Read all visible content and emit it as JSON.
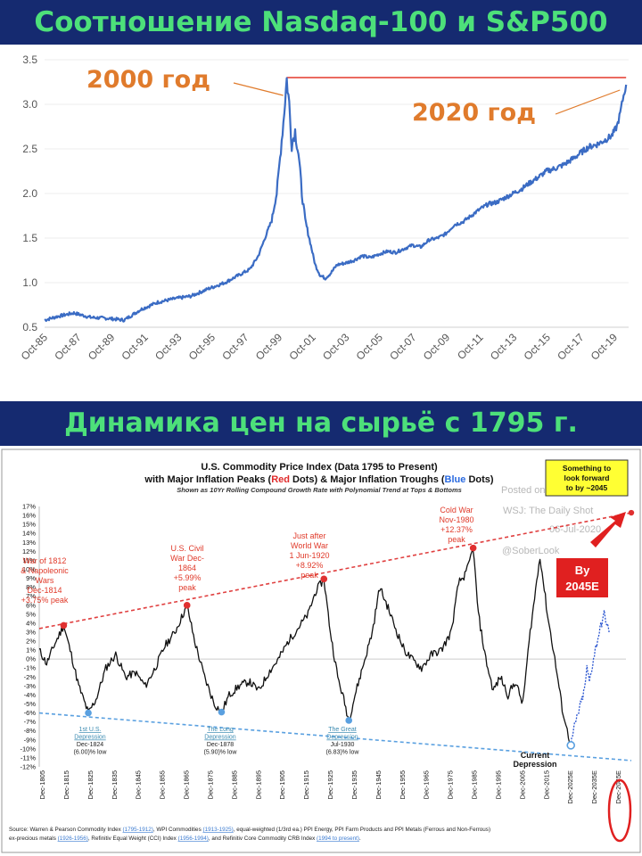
{
  "banner_top": "Соотношение Nasdaq-100 и S&P500",
  "banner_bottom": "Динамика цен на сырьё с 1795 г.",
  "chart_data": [
    {
      "type": "line",
      "y_ticks": [
        "3.5",
        "3.0",
        "2.5",
        "2.0",
        "1.5",
        "1.0",
        "0.5"
      ],
      "x_ticks": [
        "Oct-85",
        "Oct-87",
        "Oct-89",
        "Oct-91",
        "Oct-93",
        "Oct-95",
        "Oct-97",
        "Oct-99",
        "Oct-01",
        "Oct-03",
        "Oct-05",
        "Oct-07",
        "Oct-09",
        "Oct-11",
        "Oct-13",
        "Oct-15",
        "Oct-17",
        "Oct-19"
      ],
      "ylim": [
        0.5,
        3.5
      ],
      "xlim": [
        1985.75,
        2020.6
      ],
      "series_color": "#3b6cc4",
      "reference_line": 3.3,
      "reference_color": "#e8544a",
      "annotations": [
        {
          "text": "2000 год",
          "x": 2000.2,
          "y": 3.3
        },
        {
          "text": "2020 год",
          "x": 2020.4,
          "y": 3.22
        }
      ],
      "x": [
        1985.75,
        1986.5,
        1987.5,
        1988.5,
        1989.5,
        1990.5,
        1991.5,
        1992.5,
        1993.5,
        1994.5,
        1995.5,
        1996.5,
        1997.5,
        1998.0,
        1998.5,
        1999.0,
        1999.3,
        1999.6,
        1999.8,
        2000.0,
        2000.2,
        2000.35,
        2000.5,
        2000.7,
        2000.9,
        2001.1,
        2001.3,
        2001.6,
        2001.9,
        2002.2,
        2002.5,
        2002.8,
        2003.2,
        2003.7,
        2004.2,
        2004.7,
        2005.2,
        2005.7,
        2006.2,
        2006.7,
        2007.2,
        2007.7,
        2008.2,
        2008.7,
        2009.2,
        2009.7,
        2010.2,
        2010.7,
        2011.2,
        2011.7,
        2012.2,
        2012.7,
        2013.2,
        2013.7,
        2014.2,
        2014.7,
        2015.2,
        2015.7,
        2016.2,
        2016.7,
        2017.2,
        2017.7,
        2018.2,
        2018.7,
        2019.2,
        2019.6,
        2019.9,
        2020.1,
        2020.3,
        2020.45
      ],
      "y": [
        0.58,
        0.62,
        0.66,
        0.61,
        0.6,
        0.58,
        0.7,
        0.78,
        0.82,
        0.85,
        0.93,
        1.0,
        1.1,
        1.15,
        1.3,
        1.55,
        1.7,
        2.0,
        2.4,
        2.8,
        3.28,
        3.0,
        2.55,
        2.7,
        2.45,
        2.0,
        1.7,
        1.45,
        1.2,
        1.08,
        1.05,
        1.1,
        1.2,
        1.22,
        1.25,
        1.3,
        1.28,
        1.32,
        1.35,
        1.34,
        1.38,
        1.42,
        1.4,
        1.48,
        1.5,
        1.55,
        1.65,
        1.68,
        1.75,
        1.82,
        1.88,
        1.9,
        1.95,
        2.0,
        2.05,
        2.12,
        2.18,
        2.25,
        2.28,
        2.32,
        2.38,
        2.45,
        2.52,
        2.55,
        2.6,
        2.65,
        2.75,
        2.9,
        3.1,
        3.22
      ]
    },
    {
      "type": "line",
      "title_line1": "U.S. Commodity Price Index (Data 1795 to Present)",
      "title_line2_a": "with Major Inflation Peaks (",
      "title_line2_red": "Red",
      "title_line2_b": " Dots) & Major Inflation Troughs (",
      "title_line2_blue": "Blue",
      "title_line2_c": " Dots)",
      "subtitle": "Shown as 10Yr Rolling Compound Growth Rate with Polynomial Trend  at Tops & Bottoms",
      "y_ticks": [
        "17%",
        "16%",
        "15%",
        "14%",
        "13%",
        "12%",
        "11%",
        "10%",
        "9%",
        "8%",
        "7%",
        "6%",
        "5%",
        "4%",
        "3%",
        "2%",
        "1%",
        "0%",
        "-1%",
        "-2%",
        "-3%",
        "-4%",
        "-5%",
        "-6%",
        "-7%",
        "-8%",
        "-9%",
        "-10%",
        "-11%",
        "-12%"
      ],
      "x_ticks": [
        "Dec-1805",
        "Dec-1815",
        "Dec-1825",
        "Dec-1835",
        "Dec-1845",
        "Dec-1855",
        "Dec-1865",
        "Dec-1875",
        "Dec-1885",
        "Dec-1895",
        "Dec-1905",
        "Dec-1915",
        "Dec-1925",
        "Dec-1935",
        "Dec-1945",
        "Dec-1955",
        "Dec-1965",
        "Dec-1975",
        "Dec-1985",
        "Dec-1995",
        "Dec-2005",
        "Dec-2015",
        "Dec-2025E",
        "Dec-2035E",
        "Dec-2045E"
      ],
      "ylim": [
        -12,
        17
      ],
      "xlim": [
        1805,
        2045
      ],
      "watermark_1": "Posted on",
      "watermark_2": "WSJ: The Daily Shot",
      "watermark_3": "06-Jul-2020",
      "watermark_4": "@SoberLook",
      "box_text_1": "Something to",
      "box_text_2": "look forward",
      "box_text_3": "to by ~2045",
      "by_label_1": "By",
      "by_label_2": "2045E",
      "peaks": [
        {
          "lines": [
            "War of 1812",
            "& Napoleonic",
            "Wars",
            "Dec-1814",
            "+3.75% peak"
          ],
          "x": 1814.9,
          "y": 3.75
        },
        {
          "lines": [
            "U.S. Civil",
            "War Dec-",
            "1864",
            "+5.99%",
            "peak"
          ],
          "x": 1864.9,
          "y": 5.99
        },
        {
          "lines": [
            "Just after",
            "World War",
            "1 Jun-1920",
            "+8.92%",
            "peak"
          ],
          "x": 1920.4,
          "y": 8.92
        },
        {
          "lines": [
            "Cold War",
            "Nov-1980",
            "+12.37%",
            "peak"
          ],
          "x": 1980.9,
          "y": 12.37
        }
      ],
      "troughs": [
        {
          "lines": [
            "1st U.S.",
            "Depression",
            "Dec-1824",
            "(6.00)% low"
          ],
          "x": 1824.9,
          "y": -6.0
        },
        {
          "lines": [
            "The Long",
            "Depression",
            "Dec-1878",
            "(5.90)% low"
          ],
          "x": 1878.9,
          "y": -5.9
        },
        {
          "lines": [
            "The Great",
            "Depression",
            "Jul-1930",
            "(6.83)% low"
          ],
          "x": 1930.5,
          "y": -6.83
        },
        {
          "lines": [
            "Current",
            "Depression"
          ],
          "x": 2020.5,
          "y": -9.6
        }
      ],
      "peak_trend": {
        "start": [
          1805,
          3.4
        ],
        "end": [
          2045,
          16.3
        ]
      },
      "trough_trend": {
        "start": [
          1805,
          -6.0
        ],
        "end": [
          2045,
          -11.3
        ]
      },
      "x": [
        1805,
        1808,
        1811,
        1814.9,
        1818,
        1821,
        1824.9,
        1828,
        1832,
        1836,
        1840,
        1844,
        1848,
        1852,
        1856,
        1860,
        1864.9,
        1868,
        1872,
        1876,
        1878.9,
        1882,
        1886,
        1890,
        1894,
        1898,
        1902,
        1906,
        1910,
        1914,
        1917,
        1920.4,
        1923,
        1926,
        1928,
        1930.5,
        1933,
        1936,
        1940,
        1943,
        1946,
        1950,
        1953,
        1956,
        1960,
        1964,
        1968,
        1972,
        1975,
        1978,
        1980.9,
        1983,
        1986,
        1989,
        1992,
        1995,
        1998,
        2001,
        2004,
        2008,
        2011,
        2014,
        2017,
        2019,
        2020.5
      ],
      "y": [
        1.0,
        -0.5,
        1.5,
        3.75,
        0.5,
        -3.0,
        -6.0,
        -4.5,
        -1.0,
        0.5,
        -2.0,
        -1.5,
        -3.0,
        -1.0,
        1.5,
        3.0,
        5.99,
        2.0,
        -2.0,
        -5.0,
        -5.9,
        -4.0,
        -3.0,
        -2.5,
        -3.5,
        -1.5,
        0.0,
        2.0,
        3.5,
        5.0,
        7.5,
        8.92,
        3.0,
        -2.0,
        -4.0,
        -6.83,
        -4.0,
        -1.0,
        3.0,
        8.0,
        6.0,
        3.0,
        1.0,
        0.0,
        -1.0,
        0.5,
        1.0,
        3.0,
        8.5,
        9.5,
        12.37,
        5.0,
        0.0,
        -3.5,
        -2.0,
        -4.0,
        -2.5,
        -5.0,
        3.0,
        11.5,
        5.0,
        0.0,
        -5.5,
        -8.0,
        -9.6
      ],
      "forecast_x": [
        2020.5,
        2022,
        2024,
        2026,
        2027,
        2028,
        2030,
        2032,
        2034,
        2036
      ],
      "forecast_y": [
        -9.6,
        -7.5,
        -5.5,
        -3.5,
        -1.0,
        -2.5,
        0.5,
        3.0,
        5.0,
        3.0
      ],
      "source_a": "Source: Warren & Pearson Commodity Index ",
      "source_b": "(1795-1912)",
      "source_c": ", WPI Commodities ",
      "source_d": "(1913-1925)",
      "source_e": ", equal-weighted (1/3rd ea.) PPI Energy, PPI Farm Products and PPI Metals (Ferrous and Non-Ferrous)",
      "source_f": "ex-precious metals ",
      "source_g": "(1926-1956)",
      "source_h": ", Refinitiv Equal Weight (CCI) Index ",
      "source_i": "(1956-1994)",
      "source_j": ", and Refinitiv Core Commodity CRB Index ",
      "source_k": "(1994 to present)",
      "source_l": "."
    }
  ]
}
